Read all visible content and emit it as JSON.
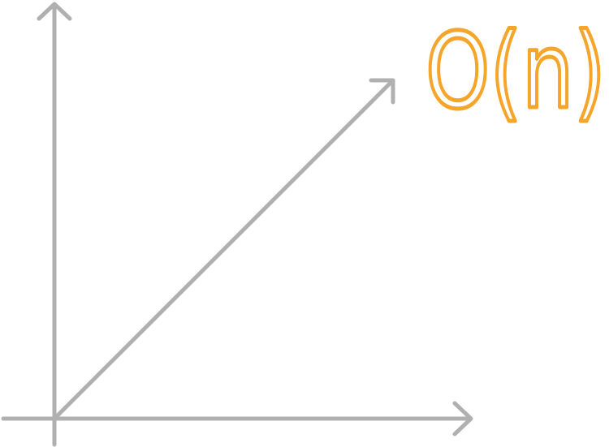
{
  "label": "O(n)"
}
